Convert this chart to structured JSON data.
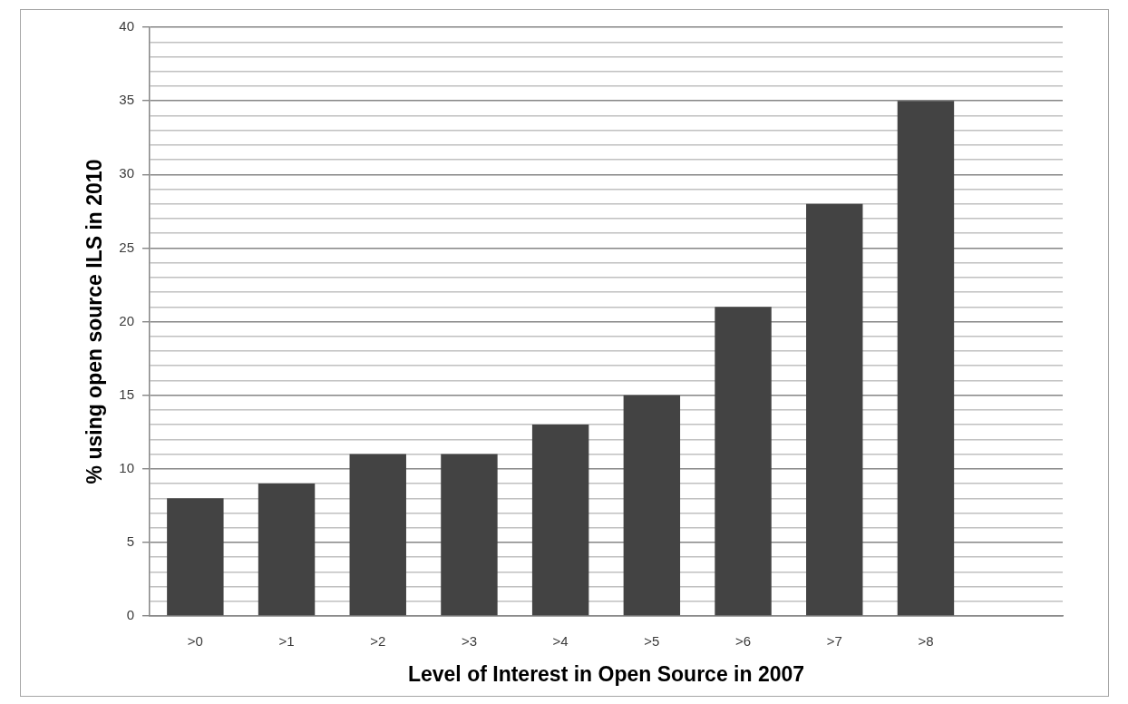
{
  "chart_data": {
    "type": "bar",
    "xlabel": "Level of Interest in Open Source in 2007",
    "ylabel": "% using open source ILS in 2010",
    "categories": [
      ">0",
      ">1",
      ">2",
      ">3",
      ">4",
      ">5",
      ">6",
      ">7",
      ">8",
      null
    ],
    "values": [
      8,
      9,
      11,
      11,
      13,
      15,
      21,
      28,
      35,
      null
    ],
    "color": "#434343",
    "ylim": [
      0,
      40
    ],
    "yticks": [
      0,
      {
        "value": 1,
        "label": null
      },
      {
        "value": 2,
        "label": null
      },
      {
        "value": 3,
        "label": null
      },
      {
        "value": 4,
        "label": null
      },
      5,
      {
        "value": 6,
        "label": null
      },
      {
        "value": 7,
        "label": null
      },
      {
        "value": 8,
        "label": null
      },
      {
        "value": 9,
        "label": null
      },
      10,
      {
        "value": 11,
        "label": null
      },
      {
        "value": 12,
        "label": null
      },
      {
        "value": 13,
        "label": null
      },
      {
        "value": 14,
        "label": null
      },
      15,
      {
        "value": 16,
        "label": null
      },
      {
        "value": 17,
        "label": null
      },
      {
        "value": 18,
        "label": null
      },
      {
        "value": 19,
        "label": null
      },
      20,
      {
        "value": 21,
        "label": null
      },
      {
        "value": 22,
        "label": null
      },
      {
        "value": 23,
        "label": null
      },
      {
        "value": 24,
        "label": null
      },
      25,
      {
        "value": 26,
        "label": null
      },
      {
        "value": 27,
        "label": null
      },
      {
        "value": 28,
        "label": null
      },
      {
        "value": 29,
        "label": null
      },
      30,
      {
        "value": 31,
        "label": null
      },
      {
        "value": 32,
        "label": null
      },
      {
        "value": 33,
        "label": null
      },
      {
        "value": 34,
        "label": null
      },
      35,
      {
        "value": 36,
        "label": null
      },
      {
        "value": 37,
        "label": null
      },
      {
        "value": 38,
        "label": null
      },
      {
        "value": 39,
        "label": null
      },
      40
    ],
    "grid": "y"
  }
}
